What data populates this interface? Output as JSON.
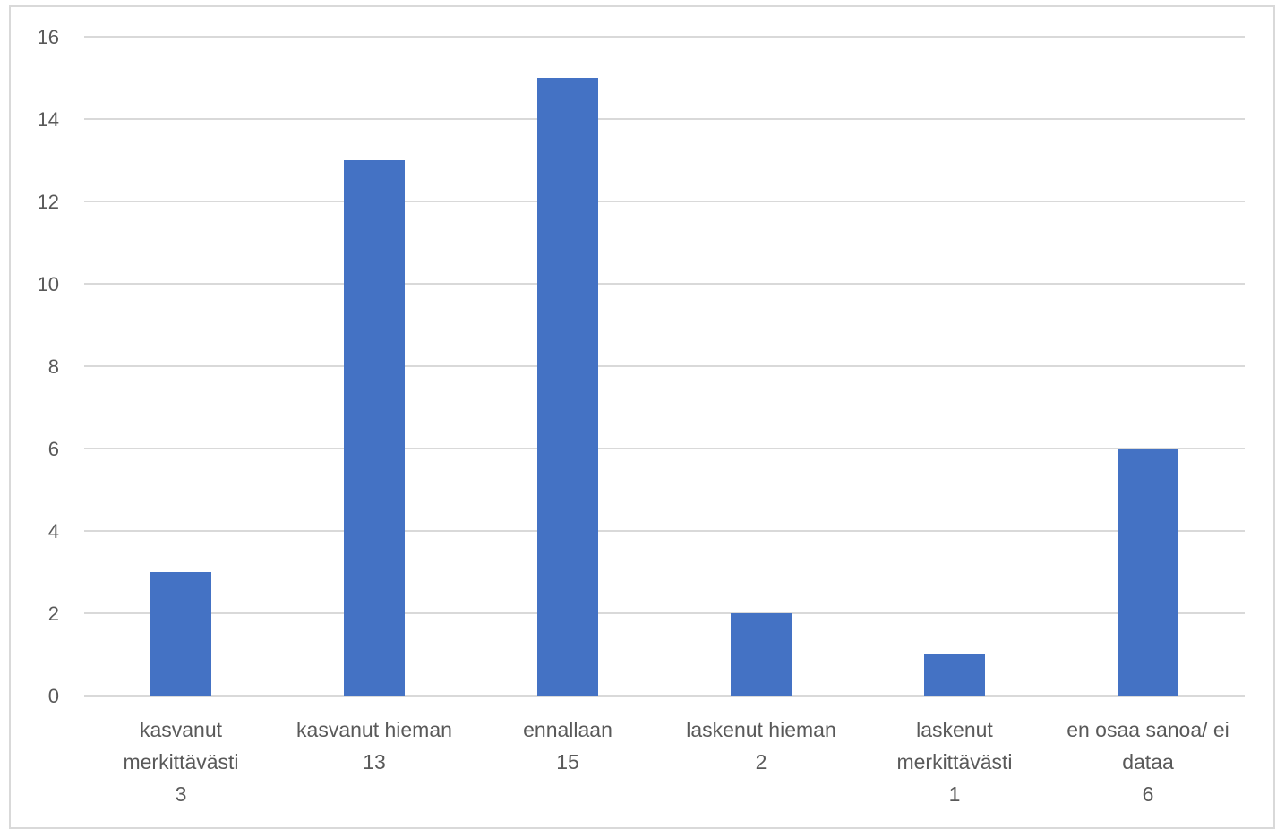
{
  "chart_data": {
    "type": "bar",
    "title": "",
    "xlabel": "",
    "ylabel": "",
    "ylim": [
      0,
      16
    ],
    "yticks": [
      0,
      2,
      4,
      6,
      8,
      10,
      12,
      14,
      16
    ],
    "grid": true,
    "legend": "none",
    "categories": [
      {
        "label_lines": [
          "kasvanut",
          "merkittävästi",
          "3"
        ]
      },
      {
        "label_lines": [
          "kasvanut hieman",
          "13"
        ]
      },
      {
        "label_lines": [
          "ennallaan",
          "15"
        ]
      },
      {
        "label_lines": [
          "laskenut hieman",
          "2"
        ]
      },
      {
        "label_lines": [
          "laskenut",
          "merkittävästi",
          "1"
        ]
      },
      {
        "label_lines": [
          "en osaa sanoa/ ei",
          "dataa",
          "6"
        ]
      }
    ],
    "values": [
      3,
      13,
      15,
      2,
      1,
      6
    ],
    "bar_color": "#4472c4",
    "grid_color": "#d9d9d9"
  }
}
